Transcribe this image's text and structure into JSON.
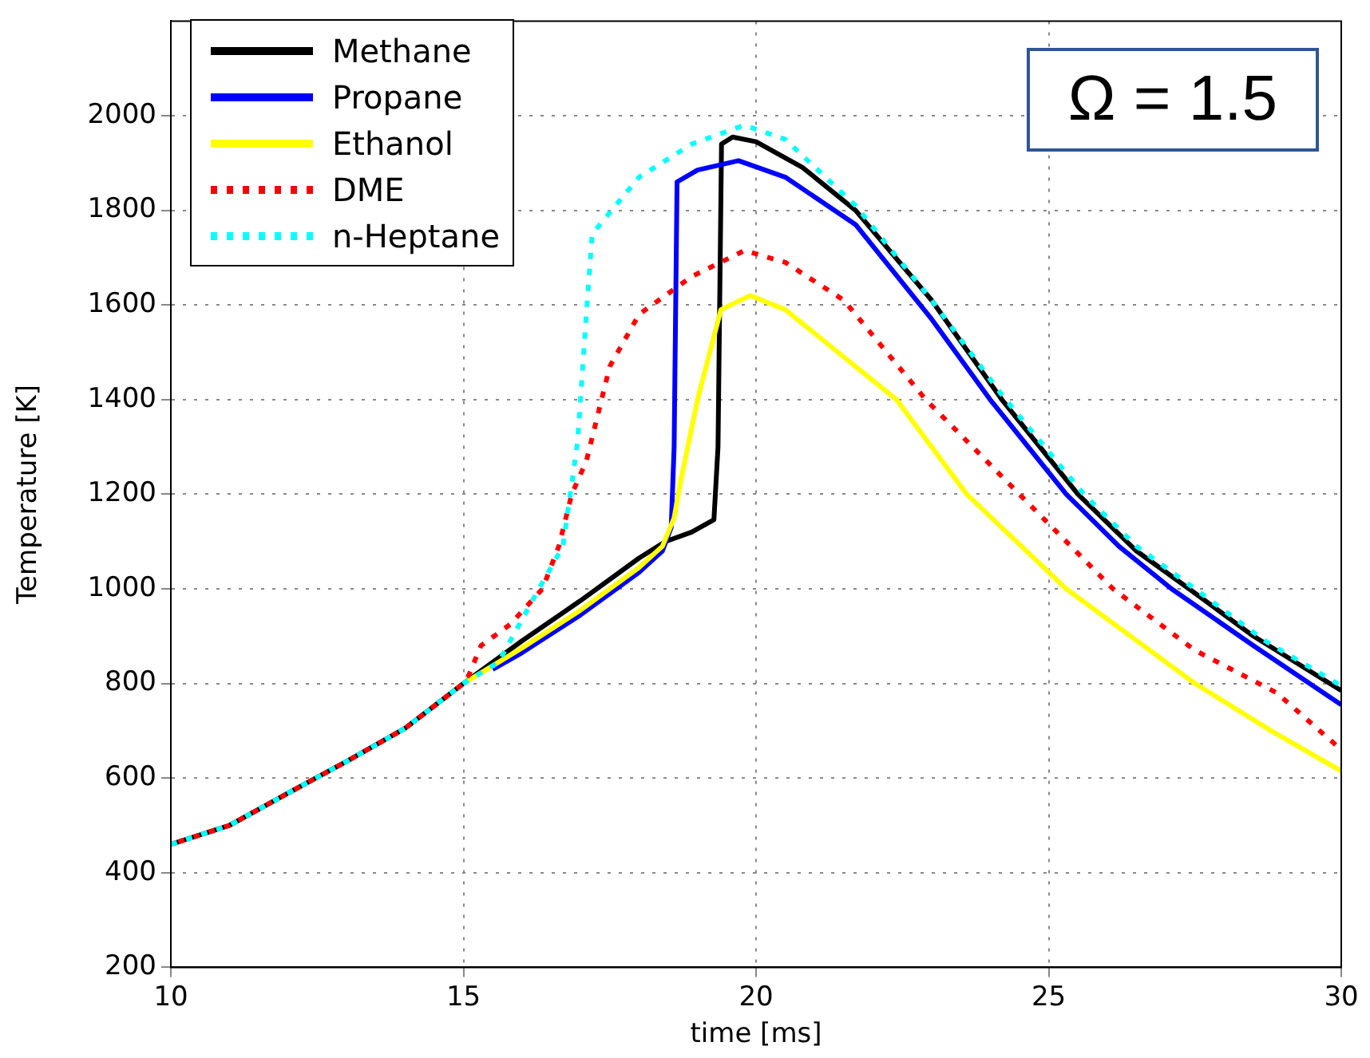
{
  "chart_data": {
    "type": "line",
    "xlabel": "time [ms]",
    "ylabel": "Temperature [K]",
    "xlim": [
      10,
      30
    ],
    "xticks": [
      10,
      15,
      20,
      25,
      30
    ],
    "ylim": [
      200,
      2200
    ],
    "yticks": [
      200,
      400,
      600,
      800,
      1000,
      1200,
      1400,
      1600,
      1800,
      2000
    ],
    "grid": true,
    "legend": "top left",
    "marker": "none",
    "annotations": [
      "Ω = 1.5"
    ],
    "series": [
      {
        "name": "Methane",
        "color": "#000000",
        "line_style": "solid",
        "x": [
          10,
          11,
          12,
          13,
          14,
          15,
          16,
          17,
          18,
          18.45,
          18.9,
          19.28,
          19.35,
          19.41,
          19.6,
          20,
          20.8,
          21.7,
          23,
          24.2,
          25.5,
          26.5,
          27.4,
          28.5,
          30
        ],
        "values": [
          460,
          500,
          568,
          635,
          705,
          800,
          890,
          975,
          1065,
          1100,
          1120,
          1146,
          1300,
          1940,
          1955,
          1945,
          1890,
          1800,
          1610,
          1400,
          1200,
          1080,
          1000,
          900,
          785
        ]
      },
      {
        "name": "Propane",
        "color": "#0000ff",
        "line_style": "solid",
        "x": [
          15.5,
          16,
          17,
          18,
          18.4,
          18.55,
          18.6,
          18.65,
          19,
          19.7,
          20.5,
          21.7,
          23,
          24,
          25.3,
          26.2,
          27.1,
          28.5,
          30
        ],
        "values": [
          830,
          865,
          945,
          1035,
          1080,
          1130,
          1300,
          1860,
          1885,
          1905,
          1870,
          1770,
          1570,
          1400,
          1200,
          1090,
          1000,
          880,
          755
        ]
      },
      {
        "name": "Ethanol",
        "color": "#ffff00",
        "line_style": "solid",
        "x": [
          15,
          16,
          17,
          18,
          18.4,
          18.6,
          18.7,
          19,
          19.4,
          19.9,
          20.5,
          21,
          22.4,
          23.6,
          25.3,
          27.5,
          28.8,
          30
        ],
        "values": [
          800,
          875,
          955,
          1045,
          1090,
          1150,
          1220,
          1400,
          1590,
          1620,
          1590,
          1540,
          1400,
          1200,
          1000,
          800,
          700,
          615
        ]
      },
      {
        "name": "DME",
        "color": "#ff0000",
        "line_style": "dotted",
        "x": [
          10,
          11,
          12,
          13,
          14,
          15,
          15.1,
          15.3,
          15.8,
          16.35,
          16.63,
          16.85,
          17.1,
          17.5,
          18,
          18.9,
          19.8,
          20.5,
          21.5,
          22.9,
          24.5,
          26.1,
          27.5,
          28.9,
          30
        ],
        "values": [
          460,
          500,
          568,
          635,
          705,
          800,
          820,
          880,
          925,
          1000,
          1090,
          1200,
          1270,
          1470,
          1580,
          1660,
          1715,
          1690,
          1610,
          1400,
          1200,
          1000,
          870,
          780,
          660
        ]
      },
      {
        "name": "n-Heptane",
        "color": "#00ffff",
        "line_style": "dotted",
        "x": [
          10,
          11,
          12,
          13,
          14,
          15,
          15.6,
          16.2,
          16.7,
          16.95,
          17.1,
          17.2,
          18,
          18.9,
          19.8,
          20.5,
          21.7,
          23,
          24.2,
          25.6,
          26.5,
          27.5,
          28.7,
          30
        ],
        "values": [
          460,
          500,
          568,
          635,
          705,
          800,
          845,
          980,
          1090,
          1310,
          1580,
          1750,
          1870,
          1940,
          1980,
          1950,
          1810,
          1610,
          1410,
          1200,
          1090,
          1000,
          890,
          795
        ]
      }
    ]
  }
}
